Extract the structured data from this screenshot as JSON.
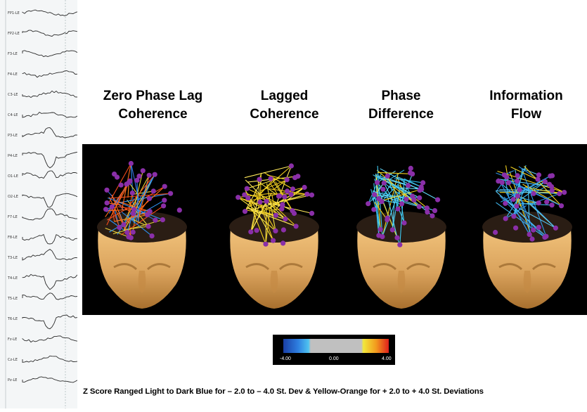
{
  "eeg": {
    "channels": [
      "FP1-LE",
      "FP2-LE",
      "F3-LE",
      "F4-LE",
      "C3-LE",
      "C4-LE",
      "P3-LE",
      "P4-LE",
      "O1-LE",
      "O2-LE",
      "F7-LE",
      "F8-LE",
      "T3-LE",
      "T4-LE",
      "T5-LE",
      "T6-LE",
      "Fz-LE",
      "Cz-LE",
      "Pz-LE"
    ]
  },
  "panels": [
    {
      "title_line1": "Zero Phase Lag",
      "title_line2": "Coherence",
      "palette": "warm-cool"
    },
    {
      "title_line1": "Lagged",
      "title_line2": "Coherence",
      "palette": "yellow"
    },
    {
      "title_line1": "Phase",
      "title_line2": "Difference",
      "palette": "cyan"
    },
    {
      "title_line1": "Information",
      "title_line2": "Flow",
      "palette": "blue"
    }
  ],
  "colorbar": {
    "min_label": "-4.00",
    "mid_label": "0.00",
    "max_label": "4.00",
    "colors": {
      "dark_blue": "#1a3fa6",
      "light_blue": "#4fc3f0",
      "neutral": "#c0c0c0",
      "yellow": "#f2e83a",
      "orange": "#f29a1e",
      "red": "#e0201c"
    }
  },
  "caption": "Z Score Ranged Light to Dark Blue for – 2.0 to – 4.0 St. Dev & Yellow-Orange for + 2.0 to + 4.0 St. Deviations",
  "colors": {
    "head_skin": "#d9a25c",
    "electrode": "#8a2fa8",
    "panel_bg": "#000000"
  }
}
